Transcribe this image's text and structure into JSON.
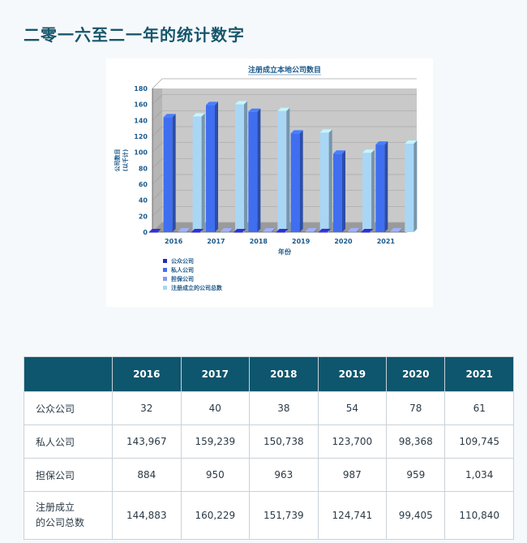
{
  "page": {
    "title": "二零一六至二一年的统计数字"
  },
  "chart_data": {
    "type": "bar",
    "title": "注册成立本地公司数目",
    "xlabel": "年份",
    "ylabel": "公司数目",
    "ylabel_unit": "(以千计)",
    "ylim": [
      0,
      180
    ],
    "yticks": [
      0,
      20,
      40,
      60,
      80,
      100,
      120,
      140,
      160,
      180
    ],
    "categories": [
      "2016",
      "2017",
      "2018",
      "2019",
      "2020",
      "2021"
    ],
    "grid": true,
    "legend_position": "bottom-left",
    "series": [
      {
        "name": "公众公司",
        "color": "#2a2ab8",
        "values": [
          0.032,
          0.04,
          0.038,
          0.054,
          0.078,
          0.061
        ]
      },
      {
        "name": "私人公司",
        "color": "#3f6ef0",
        "values": [
          143.967,
          159.239,
          150.738,
          123.7,
          98.368,
          109.745
        ]
      },
      {
        "name": "担保公司",
        "color": "#8a9ae8",
        "values": [
          0.884,
          0.95,
          0.963,
          0.987,
          0.959,
          1.034
        ]
      },
      {
        "name": "注册成立的公司总数",
        "color": "#a9d6f5",
        "values": [
          144.883,
          160.229,
          151.739,
          124.741,
          99.405,
          110.84
        ]
      }
    ]
  },
  "table": {
    "headers": [
      "",
      "2016",
      "2017",
      "2018",
      "2019",
      "2020",
      "2021"
    ],
    "rows": [
      {
        "label_lines": [
          "公众公司"
        ],
        "values": [
          "32",
          "40",
          "38",
          "54",
          "78",
          "61"
        ]
      },
      {
        "label_lines": [
          "私人公司"
        ],
        "values": [
          "143,967",
          "159,239",
          "150,738",
          "123,700",
          "98,368",
          "109,745"
        ]
      },
      {
        "label_lines": [
          "担保公司"
        ],
        "values": [
          "884",
          "950",
          "963",
          "987",
          "959",
          "1,034"
        ]
      },
      {
        "label_lines": [
          "注册成立",
          "的公司总数"
        ],
        "values": [
          "144,883",
          "160,229",
          "151,739",
          "124,741",
          "99,405",
          "110,840"
        ]
      }
    ]
  }
}
